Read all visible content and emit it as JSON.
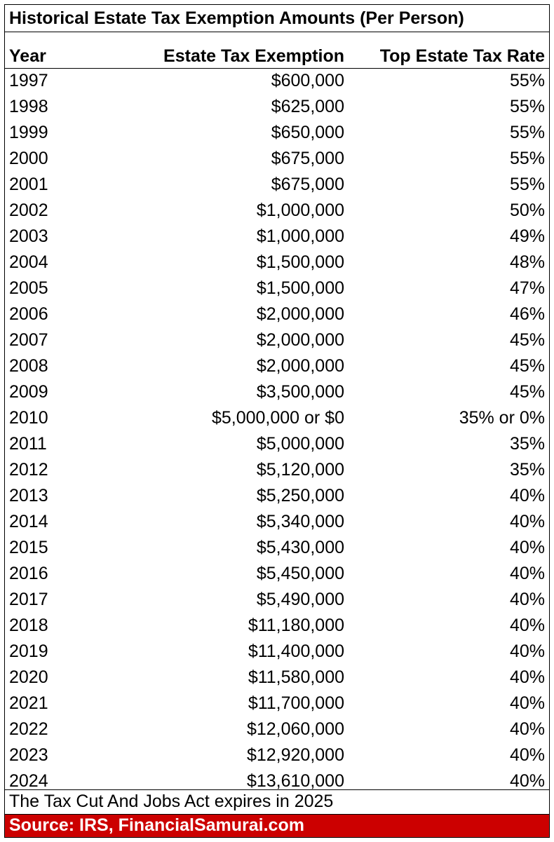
{
  "colors": {
    "source_bar_bg": "#cc0000",
    "source_bar_text": "#ffffff",
    "border": "#000000"
  },
  "chart_data": {
    "type": "table",
    "title": "Historical Estate Tax Exemption Amounts (Per Person)",
    "columns": [
      "Year",
      "Estate Tax Exemption",
      "Top Estate Tax Rate"
    ],
    "rows": [
      [
        "1997",
        "$600,000",
        "55%"
      ],
      [
        "1998",
        "$625,000",
        "55%"
      ],
      [
        "1999",
        "$650,000",
        "55%"
      ],
      [
        "2000",
        "$675,000",
        "55%"
      ],
      [
        "2001",
        "$675,000",
        "55%"
      ],
      [
        "2002",
        "$1,000,000",
        "50%"
      ],
      [
        "2003",
        "$1,000,000",
        "49%"
      ],
      [
        "2004",
        "$1,500,000",
        "48%"
      ],
      [
        "2005",
        "$1,500,000",
        "47%"
      ],
      [
        "2006",
        "$2,000,000",
        "46%"
      ],
      [
        "2007",
        "$2,000,000",
        "45%"
      ],
      [
        "2008",
        "$2,000,000",
        "45%"
      ],
      [
        "2009",
        "$3,500,000",
        "45%"
      ],
      [
        "2010",
        "$5,000,000 or $0",
        "35% or 0%"
      ],
      [
        "2011",
        "$5,000,000",
        "35%"
      ],
      [
        "2012",
        "$5,120,000",
        "35%"
      ],
      [
        "2013",
        "$5,250,000",
        "40%"
      ],
      [
        "2014",
        "$5,340,000",
        "40%"
      ],
      [
        "2015",
        "$5,430,000",
        "40%"
      ],
      [
        "2016",
        "$5,450,000",
        "40%"
      ],
      [
        "2017",
        "$5,490,000",
        "40%"
      ],
      [
        "2018",
        "$11,180,000",
        "40%"
      ],
      [
        "2019",
        "$11,400,000",
        "40%"
      ],
      [
        "2020",
        "$11,580,000",
        "40%"
      ],
      [
        "2021",
        "$11,700,000",
        "40%"
      ],
      [
        "2022",
        "$12,060,000",
        "40%"
      ],
      [
        "2023",
        "$12,920,000",
        "40%"
      ],
      [
        "2024",
        "$13,610,000",
        "40%"
      ]
    ],
    "note": "The Tax Cut And Jobs Act expires in 2025",
    "source": "Source: IRS, FinancialSamurai.com"
  }
}
